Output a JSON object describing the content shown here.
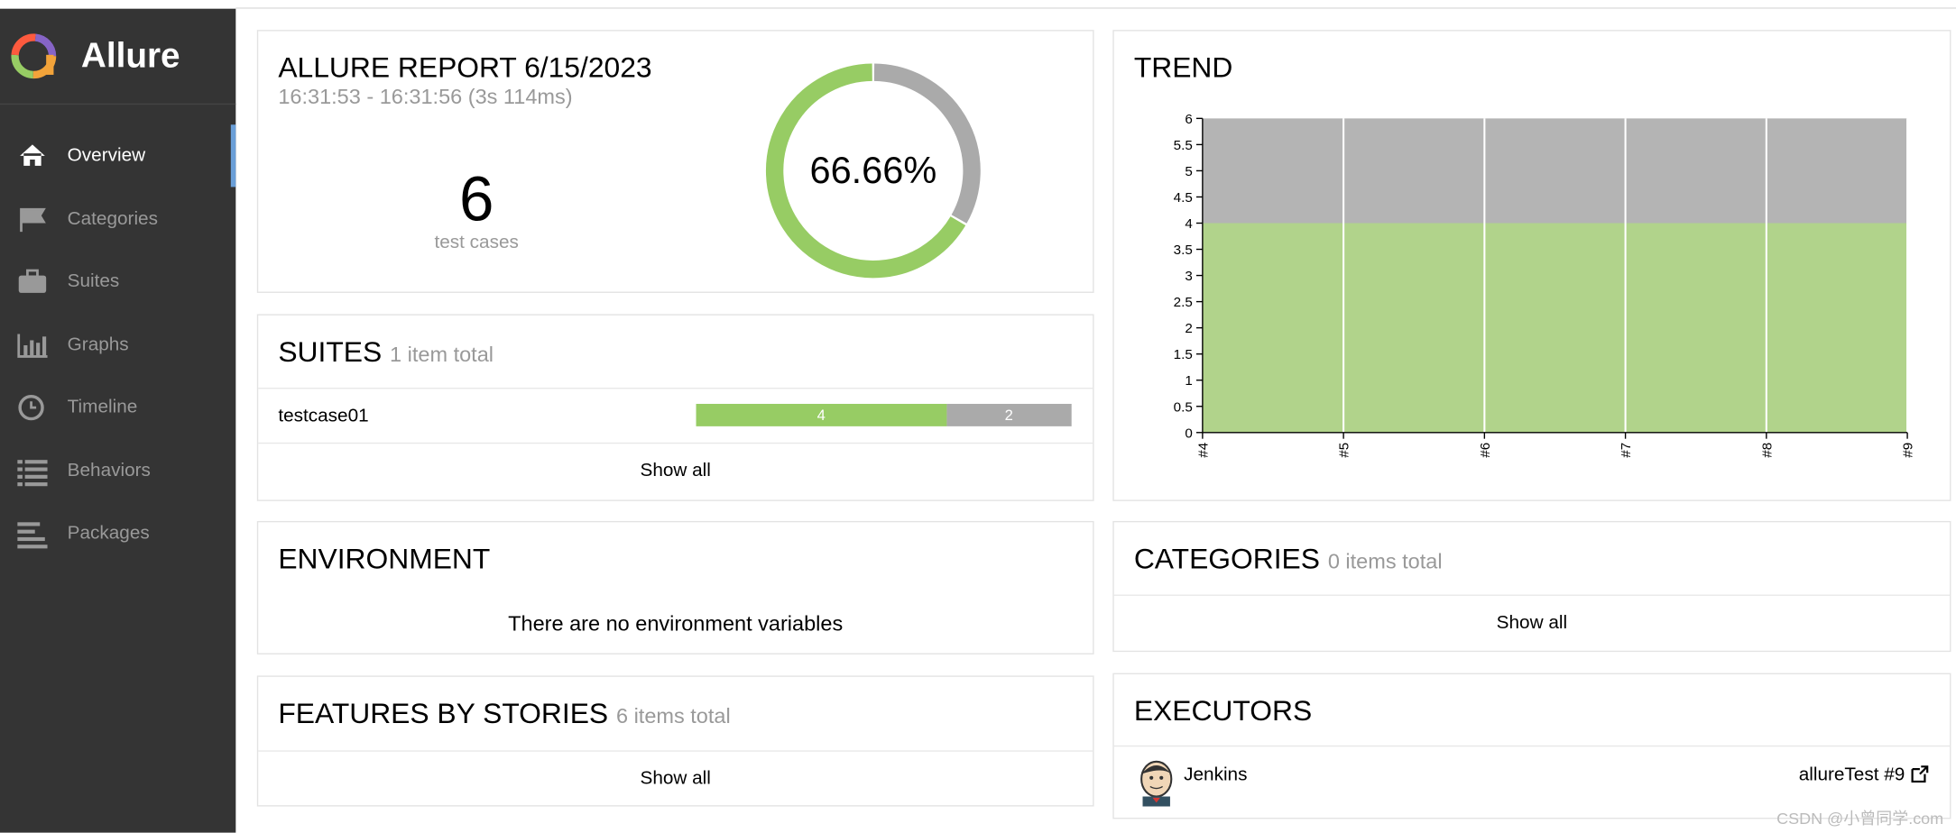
{
  "sidebar": {
    "brand": "Allure",
    "nav": [
      "Overview",
      "Categories",
      "Suites",
      "Graphs",
      "Timeline",
      "Behaviors",
      "Packages"
    ]
  },
  "summary": {
    "title": "ALLURE REPORT 6/15/2023",
    "time": "16:31:53 - 16:31:56 (3s 114ms)",
    "count": 6,
    "count_label": "test cases",
    "percent": "66.66%"
  },
  "suites": {
    "title": "SUITES",
    "total": "1 item total",
    "rows": [
      {
        "name": "testcase01",
        "passed": 4,
        "failed": 2
      }
    ],
    "show_all": "Show all"
  },
  "environment": {
    "title": "ENVIRONMENT",
    "message": "There are no environment variables"
  },
  "features": {
    "title": "FEATURES BY STORIES",
    "total": "6 items total",
    "show_all": "Show all"
  },
  "trend": {
    "title": "TREND"
  },
  "chart_data": {
    "type": "area",
    "stacked": true,
    "categories": [
      "#4",
      "#5",
      "#6",
      "#7",
      "#8",
      "#9"
    ],
    "series": [
      {
        "color": "#b1d38b",
        "values": [
          4,
          4,
          4,
          4,
          4,
          4
        ]
      },
      {
        "color": "#b4b4b4",
        "values": [
          2,
          2,
          2,
          2,
          2,
          2
        ]
      }
    ],
    "ylim": [
      0,
      6
    ],
    "yticks": [
      0,
      0.5,
      1,
      1.5,
      2,
      2.5,
      3,
      3.5,
      4,
      4.5,
      5,
      5.5,
      6
    ]
  },
  "categories_panel": {
    "title": "CATEGORIES",
    "total": "0 items total",
    "show_all": "Show all"
  },
  "executors": {
    "title": "EXECUTORS",
    "rows": [
      {
        "name": "Jenkins",
        "build": "allureTest #9"
      }
    ]
  },
  "watermark": "CSDN @小曾同学.com"
}
